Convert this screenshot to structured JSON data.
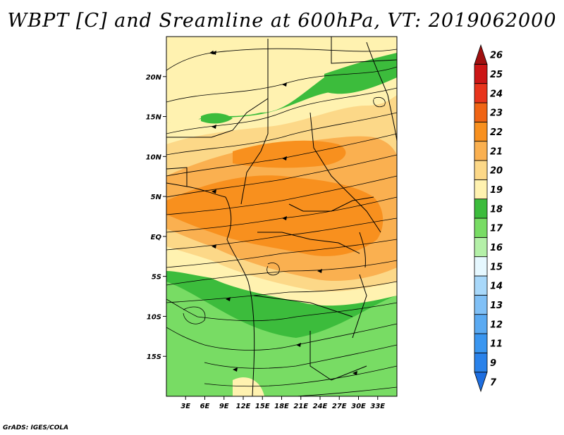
{
  "title": "WBPT [C] and Sreamline at 600hPa, VT: 2019062000",
  "footer": "GrADS: IGES/COLA",
  "map": {
    "lon_range": [
      0,
      36
    ],
    "lat_range": [
      -20,
      25
    ],
    "lon_ticks": [
      {
        "lon": 3,
        "label": "3E"
      },
      {
        "lon": 6,
        "label": "6E"
      },
      {
        "lon": 9,
        "label": "9E"
      },
      {
        "lon": 12,
        "label": "12E"
      },
      {
        "lon": 15,
        "label": "15E"
      },
      {
        "lon": 18,
        "label": "18E"
      },
      {
        "lon": 21,
        "label": "21E"
      },
      {
        "lon": 24,
        "label": "24E"
      },
      {
        "lon": 27,
        "label": "27E"
      },
      {
        "lon": 30,
        "label": "30E"
      },
      {
        "lon": 33,
        "label": "33E"
      }
    ],
    "lat_ticks": [
      {
        "lat": 20,
        "label": "20N"
      },
      {
        "lat": 15,
        "label": "15N"
      },
      {
        "lat": 10,
        "label": "10N"
      },
      {
        "lat": 5,
        "label": "5N"
      },
      {
        "lat": 0,
        "label": "EQ"
      },
      {
        "lat": -5,
        "label": "5S"
      },
      {
        "lat": -10,
        "label": "10S"
      },
      {
        "lat": -15,
        "label": "15S"
      }
    ]
  },
  "colorbar": {
    "labels": [
      "7",
      "9",
      "11",
      "12",
      "13",
      "14",
      "15",
      "16",
      "17",
      "18",
      "19",
      "20",
      "21",
      "22",
      "23",
      "24",
      "25",
      "26"
    ],
    "colors": [
      "#1e6ee0",
      "#2a82ea",
      "#3a96f0",
      "#5aaaf2",
      "#80c0f6",
      "#a8d8fa",
      "#e6f8ff",
      "#b4f0a8",
      "#78dc64",
      "#3cbc3c",
      "#fff2b0",
      "#fcd888",
      "#fab050",
      "#f8901e",
      "#f06414",
      "#e8341c",
      "#cc1616",
      "#a01010"
    ]
  }
}
